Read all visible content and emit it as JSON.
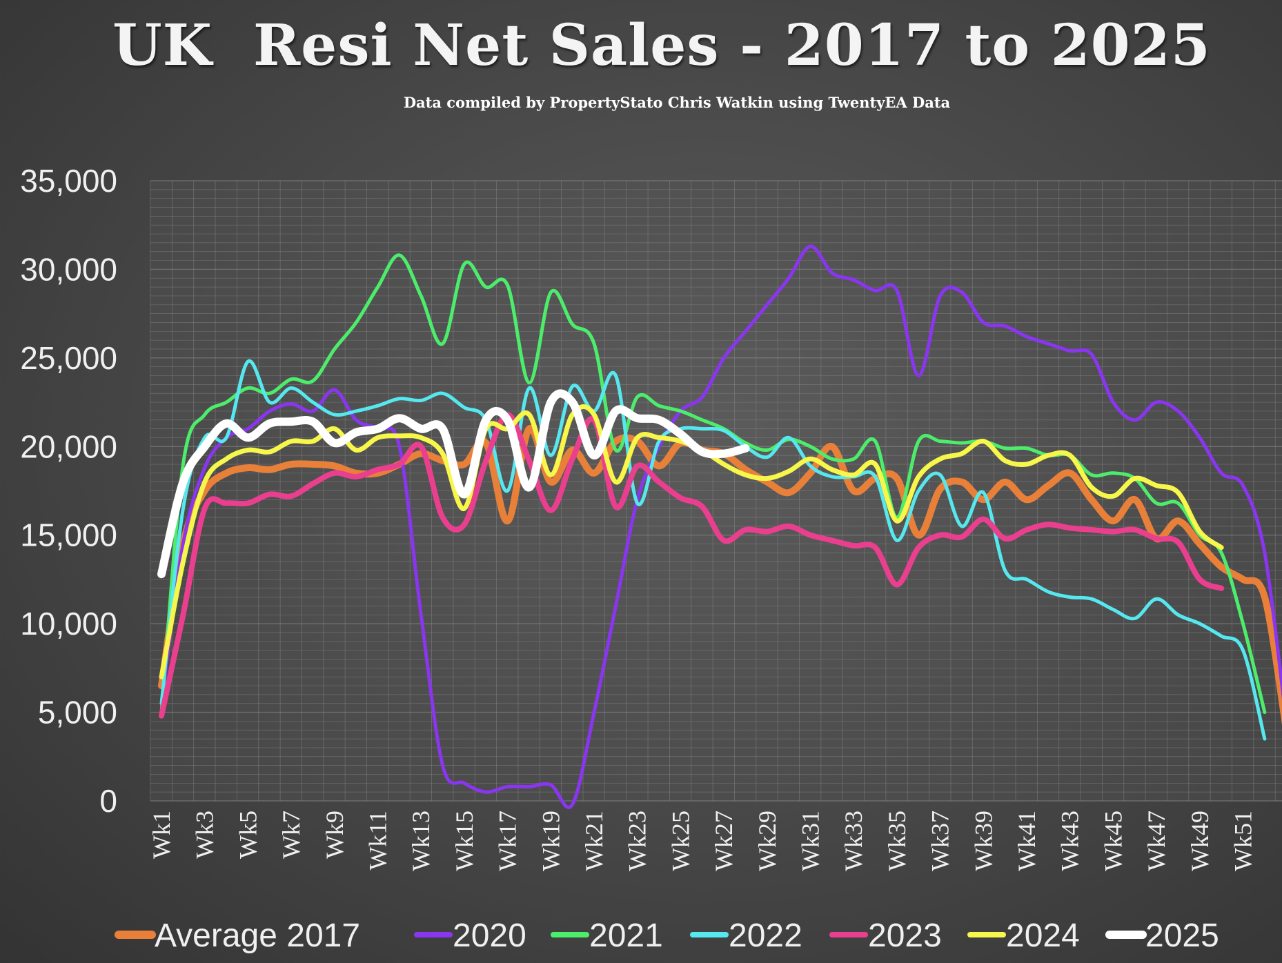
{
  "chart_data": {
    "type": "line",
    "title": "UK  Resi Net Sales - 2017 to 2025",
    "subtitle": "Data compiled by PropertyStato Chris Watkin using TwentyEA Data",
    "xlabel": "",
    "ylabel": "",
    "ylim": [
      0,
      35000
    ],
    "yticks": [
      "0",
      "5,000",
      "10,000",
      "15,000",
      "20,000",
      "25,000",
      "30,000",
      "35,000"
    ],
    "ytick_values": [
      0,
      5000,
      10000,
      15000,
      20000,
      25000,
      30000,
      35000
    ],
    "x_tick_labels": [
      "Wk1",
      "Wk3",
      "Wk5",
      "Wk7",
      "Wk9",
      "Wk11",
      "Wk13",
      "Wk15",
      "Wk17",
      "Wk19",
      "Wk21",
      "Wk23",
      "Wk25",
      "Wk27",
      "Wk29",
      "Wk31",
      "Wk33",
      "Wk35",
      "Wk37",
      "Wk39",
      "Wk41",
      "Wk43",
      "Wk45",
      "Wk47",
      "Wk49",
      "Wk51"
    ],
    "grid": true,
    "legend_position": "bottom",
    "series": [
      {
        "name": "Average 2017",
        "color": "#e9803a",
        "values": [
          6500,
          14500,
          17500,
          18500,
          18800,
          18700,
          19000,
          19000,
          18900,
          18500,
          18500,
          19000,
          19600,
          19200,
          19000,
          20200,
          15800,
          21000,
          18000,
          19800,
          18500,
          20300,
          20300,
          18900,
          20200,
          19800,
          19600,
          18700,
          18000,
          17400,
          18500,
          20000,
          17500,
          18200,
          18200,
          15000,
          17600,
          18000,
          17000,
          18000,
          17000,
          17800,
          18500,
          17000,
          15800,
          17000,
          14800,
          15800,
          14500,
          13200,
          12500,
          11500,
          4000
        ]
      },
      {
        "name": "2020",
        "color": "#8a35f0",
        "values": [
          5500,
          14500,
          18800,
          20500,
          21000,
          22000,
          22400,
          22000,
          23200,
          21500,
          21000,
          20000,
          10500,
          2000,
          1000,
          500,
          800,
          800,
          900,
          -200,
          5000,
          11000,
          17000,
          20000,
          22000,
          22800,
          25000,
          26500,
          28000,
          29500,
          31300,
          29800,
          29400,
          28800,
          28800,
          24000,
          28500,
          28700,
          27000,
          26800,
          26200,
          25800,
          25400,
          25200,
          22500,
          21500,
          22500,
          22000,
          20500,
          18500,
          17800,
          14000,
          4500
        ]
      },
      {
        "name": "2021",
        "color": "#4ded6c",
        "values": [
          5000,
          19000,
          21800,
          22500,
          23300,
          23000,
          23800,
          23700,
          25500,
          27000,
          29000,
          30800,
          28500,
          25800,
          30300,
          29000,
          29100,
          23600,
          28700,
          26900,
          25800,
          19800,
          22800,
          22300,
          22000,
          21500,
          21000,
          20200,
          19800,
          20400,
          20000,
          19300,
          19300,
          20300,
          16000,
          20300,
          20300,
          20200,
          20300,
          19900,
          19900,
          19500,
          19500,
          18400,
          18500,
          18200,
          16800,
          16800,
          15000,
          14000,
          10000,
          5000
        ]
      },
      {
        "name": "2022",
        "color": "#56e8ef",
        "values": [
          5500,
          16500,
          20500,
          20500,
          24800,
          22500,
          23300,
          22500,
          21800,
          22000,
          22300,
          22700,
          22600,
          23000,
          22200,
          21500,
          17500,
          23300,
          19500,
          23400,
          22000,
          24000,
          16800,
          20300,
          21000,
          21000,
          20900,
          20000,
          19400,
          20500,
          18900,
          18300,
          18300,
          18300,
          14700,
          17500,
          18400,
          15500,
          17400,
          13000,
          12500,
          11800,
          11500,
          11400,
          10800,
          10300,
          11400,
          10500,
          10000,
          9300,
          8500,
          3500
        ]
      },
      {
        "name": "2023",
        "color": "#ea3f8e",
        "values": [
          4800,
          10500,
          16500,
          16800,
          16800,
          17300,
          17200,
          17900,
          18500,
          18300,
          18700,
          19000,
          20000,
          16000,
          15600,
          19200,
          21800,
          19200,
          16400,
          19300,
          21500,
          16600,
          18900,
          18000,
          17100,
          16600,
          14700,
          15300,
          15200,
          15500,
          15000,
          14700,
          14400,
          14300,
          12200,
          14300,
          15000,
          14900,
          15900,
          14800,
          15300,
          15600,
          15400,
          15300,
          15200,
          15300,
          14800,
          14600,
          12500,
          12000
        ]
      },
      {
        "name": "2024",
        "color": "#f7f64a",
        "values": [
          7000,
          13500,
          18000,
          19300,
          19800,
          19700,
          20300,
          20300,
          21000,
          19800,
          20500,
          20600,
          20500,
          19600,
          16500,
          21000,
          21000,
          21800,
          18400,
          21800,
          21800,
          18000,
          20500,
          20500,
          20300,
          19800,
          19000,
          18400,
          18200,
          18600,
          19300,
          18700,
          18400,
          19000,
          15800,
          18300,
          19300,
          19600,
          20300,
          19200,
          19000,
          19500,
          19500,
          17700,
          17200,
          18200,
          17800,
          17400,
          15200,
          14300
        ]
      },
      {
        "name": "2025",
        "color": "#ffffff",
        "values": [
          12800,
          18000,
          20000,
          21300,
          20500,
          21300,
          21400,
          21400,
          20200,
          20800,
          21000,
          21600,
          21000,
          21000,
          17300,
          21500,
          21500,
          17700,
          22500,
          22500,
          19500,
          22000,
          21600,
          21500,
          20700,
          19700,
          19600,
          19900
        ]
      }
    ]
  }
}
